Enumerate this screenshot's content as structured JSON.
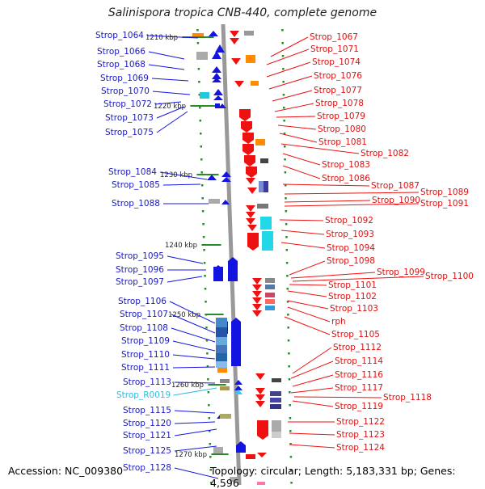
{
  "title": "Salinispora tropica CNB-440, complete genome",
  "footer": {
    "accession": "Accession: NC_009380",
    "topology": "Topology: circular; Length: 5,183,331 bp; Genes: 4,596"
  },
  "colors": {
    "forward": "#1414e0",
    "reverse": "#ee1111",
    "rna": "#33bbdd",
    "backbone": "#999999",
    "tick": "#2a8a2a"
  },
  "kbp_marks": [
    "1210 kbp",
    "1220 kbp",
    "1230 kbp",
    "1240 kbp",
    "1250 kbp",
    "1260 kbp",
    "1270 kbp"
  ],
  "left_labels": [
    "Strop_1064",
    "Strop_1066",
    "Strop_1068",
    "Strop_1069",
    "Strop_1070",
    "Strop_1072",
    "Strop_1073",
    "Strop_1075",
    "Strop_1084",
    "Strop_1085",
    "Strop_1088",
    "Strop_1095",
    "Strop_1096",
    "Strop_1097",
    "Strop_1106",
    "Strop_1107",
    "Strop_1108",
    "Strop_1109",
    "Strop_1110",
    "Strop_1111",
    "Strop_1113",
    "Strop_R0019",
    "Strop_1115",
    "Strop_1120",
    "Strop_1121",
    "Strop_1125",
    "Strop_1128"
  ],
  "right_labels": [
    "Strop_1067",
    "Strop_1071",
    "Strop_1074",
    "Strop_1076",
    "Strop_1077",
    "Strop_1078",
    "Strop_1079",
    "Strop_1080",
    "Strop_1081",
    "Strop_1082",
    "Strop_1083",
    "Strop_1086",
    "Strop_1087",
    "Strop_1089",
    "Strop_1090",
    "Strop_1091",
    "Strop_1092",
    "Strop_1093",
    "Strop_1094",
    "Strop_1098",
    "Strop_1099",
    "Strop_1100",
    "Strop_1101",
    "Strop_1102",
    "Strop_1103",
    "rph",
    "Strop_1105",
    "Strop_1112",
    "Strop_1114",
    "Strop_1116",
    "Strop_1117",
    "Strop_1118",
    "Strop_1119",
    "Strop_1122",
    "Strop_1123",
    "Strop_1124"
  ]
}
